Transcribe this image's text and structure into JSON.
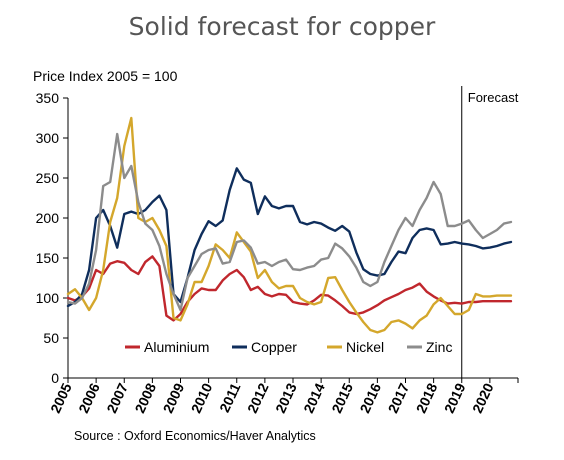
{
  "chart_data": {
    "type": "line",
    "title": "Solid forecast for copper",
    "ylabel": "Price Index 2005 = 100",
    "source": "Source : Oxford Economics/Haver Analytics",
    "annotation": "Forecast",
    "forecast_start": 2019.0,
    "xlim": [
      2005.0,
      2021.0
    ],
    "ylim": [
      0,
      350
    ],
    "yticks": [
      0,
      50,
      100,
      150,
      200,
      250,
      300,
      350
    ],
    "xticks": [
      "2005",
      "2006",
      "2007",
      "2008",
      "2009",
      "2010",
      "2011",
      "2012",
      "2013",
      "2014",
      "2015",
      "2016",
      "2017",
      "2018",
      "2019",
      "2020"
    ],
    "legend_position": "bottom-center",
    "x": [
      2005.0,
      2005.25,
      2005.5,
      2005.75,
      2006.0,
      2006.25,
      2006.5,
      2006.75,
      2007.0,
      2007.25,
      2007.5,
      2007.75,
      2008.0,
      2008.25,
      2008.5,
      2008.75,
      2009.0,
      2009.25,
      2009.5,
      2009.75,
      2010.0,
      2010.25,
      2010.5,
      2010.75,
      2011.0,
      2011.25,
      2011.5,
      2011.75,
      2012.0,
      2012.25,
      2012.5,
      2012.75,
      2013.0,
      2013.25,
      2013.5,
      2013.75,
      2014.0,
      2014.25,
      2014.5,
      2014.75,
      2015.0,
      2015.25,
      2015.5,
      2015.75,
      2016.0,
      2016.25,
      2016.5,
      2016.75,
      2017.0,
      2017.25,
      2017.5,
      2017.75,
      2018.0,
      2018.25,
      2018.5,
      2018.75,
      2019.0,
      2019.25,
      2019.5,
      2019.75,
      2020.0,
      2020.25,
      2020.5,
      2020.75
    ],
    "series": [
      {
        "name": "Aluminium",
        "color": "#c0272d",
        "values": [
          100,
          97,
          102,
          112,
          135,
          130,
          143,
          146,
          144,
          135,
          130,
          145,
          152,
          140,
          78,
          72,
          80,
          95,
          105,
          112,
          110,
          110,
          122,
          130,
          135,
          126,
          110,
          114,
          105,
          102,
          105,
          104,
          95,
          93,
          92,
          97,
          104,
          103,
          97,
          90,
          82,
          80,
          82,
          86,
          91,
          97,
          101,
          105,
          110,
          113,
          118,
          108,
          102,
          97,
          93,
          94,
          93,
          95,
          95,
          96,
          96,
          96,
          96,
          96
        ],
        "forecast_values": [
          95,
          95,
          95,
          96,
          96,
          96,
          96,
          96
        ]
      },
      {
        "name": "Copper",
        "color": "#0f2e5c",
        "values": [
          90,
          95,
          105,
          135,
          200,
          210,
          190,
          163,
          205,
          208,
          205,
          210,
          220,
          228,
          210,
          105,
          95,
          125,
          160,
          180,
          196,
          190,
          197,
          235,
          262,
          248,
          244,
          205,
          227,
          215,
          212,
          215,
          215,
          195,
          192,
          195,
          193,
          188,
          184,
          190,
          183,
          157,
          136,
          130,
          128,
          130,
          145,
          158,
          156,
          175,
          185,
          187,
          185,
          167,
          168,
          170,
          168,
          167,
          165,
          162,
          163,
          165,
          168,
          170
        ],
        "forecast_values": [
          167,
          165,
          162,
          163,
          165,
          168,
          170,
          170
        ]
      },
      {
        "name": "Nickel",
        "color": "#d4a72c",
        "values": [
          105,
          111,
          100,
          85,
          100,
          135,
          195,
          225,
          290,
          325,
          200,
          195,
          200,
          185,
          165,
          75,
          72,
          92,
          120,
          120,
          140,
          167,
          160,
          150,
          182,
          170,
          158,
          125,
          135,
          120,
          112,
          115,
          115,
          100,
          95,
          92,
          95,
          125,
          126,
          110,
          95,
          82,
          70,
          60,
          57,
          60,
          70,
          72,
          68,
          62,
          72,
          78,
          92,
          100,
          90,
          80,
          80,
          85,
          105,
          102,
          102,
          103,
          103,
          103
        ],
        "forecast_values": [
          85,
          105,
          102,
          102,
          103,
          103,
          103,
          103
        ]
      },
      {
        "name": "Zinc",
        "color": "#8c8c8c",
        "values": [
          95,
          93,
          100,
          118,
          160,
          240,
          245,
          305,
          250,
          265,
          220,
          193,
          185,
          165,
          130,
          105,
          85,
          125,
          140,
          155,
          160,
          162,
          143,
          145,
          170,
          172,
          163,
          143,
          145,
          140,
          145,
          148,
          136,
          135,
          138,
          140,
          148,
          150,
          168,
          162,
          152,
          138,
          120,
          115,
          120,
          145,
          165,
          185,
          200,
          190,
          210,
          225,
          245,
          230,
          190,
          190,
          193,
          197,
          185,
          175,
          180,
          185,
          193,
          195
        ],
        "forecast_values": [
          197,
          185,
          175,
          180,
          185,
          193,
          195,
          196
        ]
      }
    ]
  }
}
